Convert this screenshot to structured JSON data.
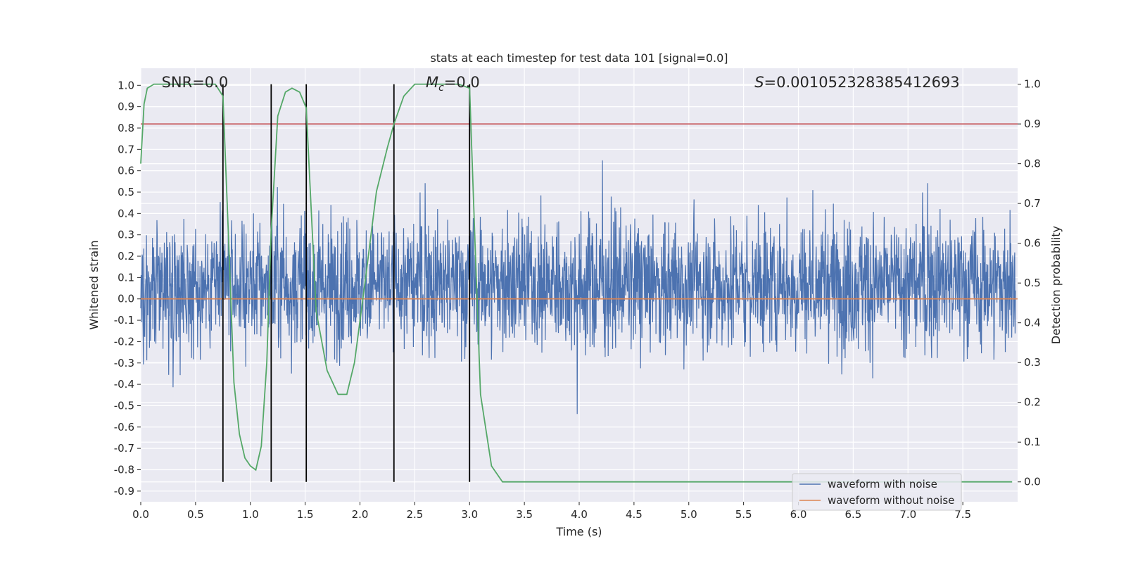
{
  "chart_data": {
    "type": "line",
    "title": "stats at each timestep for test data 101 [signal=0.0]",
    "xlabel": "Time (s)",
    "ylabel": "Whitened strain",
    "y2label": "Detection probability",
    "xlim": [
      0.0,
      8.0
    ],
    "ylim": [
      -0.95,
      1.08
    ],
    "y2lim": [
      -0.05,
      1.04
    ],
    "xticks": [
      "0.0",
      "0.5",
      "1.0",
      "1.5",
      "2.0",
      "2.5",
      "3.0",
      "3.5",
      "4.0",
      "4.5",
      "5.0",
      "5.5",
      "6.0",
      "6.5",
      "7.0",
      "7.5"
    ],
    "yticks": [
      "1.0",
      "0.9",
      "0.8",
      "0.7",
      "0.6",
      "0.5",
      "0.4",
      "0.3",
      "0.2",
      "0.1",
      "0.0",
      "-0.1",
      "-0.2",
      "-0.3",
      "-0.4",
      "-0.5",
      "-0.6",
      "-0.7",
      "-0.8",
      "-0.9"
    ],
    "y2ticks": [
      "1.0",
      "0.9",
      "0.8",
      "0.7",
      "0.6",
      "0.5",
      "0.4",
      "0.3",
      "0.2",
      "0.1",
      "0.0"
    ],
    "annotations": {
      "snr": "SNR=0.0",
      "mc_symbol": "M",
      "mc_sub": "c",
      "mc_value": "=0.0",
      "s_symbol": "S",
      "s_value": "=0.001052328385412693"
    },
    "threshold": 0.9,
    "vlines": [
      0.75,
      1.19,
      1.51,
      2.31,
      3.0
    ],
    "series": [
      {
        "name": "waveform with noise",
        "color": "#4c72b0",
        "description": "noisy whitened strain, amplitude roughly within -0.85..1.0"
      },
      {
        "name": "waveform without noise",
        "color": "#dd8452",
        "value": 0.0
      },
      {
        "name": "detection probability",
        "color": "#55a868",
        "axis": "right",
        "x": [
          0.0,
          0.03,
          0.06,
          0.12,
          0.2,
          0.3,
          0.4,
          0.5,
          0.6,
          0.68,
          0.75,
          0.8,
          0.85,
          0.9,
          0.95,
          1.0,
          1.05,
          1.1,
          1.15,
          1.19,
          1.25,
          1.32,
          1.38,
          1.45,
          1.51,
          1.6,
          1.7,
          1.8,
          1.88,
          1.95,
          2.05,
          2.15,
          2.25,
          2.31,
          2.4,
          2.5,
          2.6,
          2.7,
          2.8,
          2.9,
          3.0,
          3.05,
          3.1,
          3.2,
          3.3,
          7.95
        ],
        "values": [
          0.8,
          0.95,
          0.99,
          1.0,
          1.0,
          1.0,
          1.0,
          1.0,
          1.0,
          1.0,
          0.97,
          0.62,
          0.25,
          0.12,
          0.06,
          0.04,
          0.03,
          0.09,
          0.3,
          0.63,
          0.92,
          0.98,
          0.99,
          0.98,
          0.94,
          0.43,
          0.28,
          0.22,
          0.22,
          0.3,
          0.51,
          0.73,
          0.84,
          0.9,
          0.97,
          1.0,
          1.0,
          1.0,
          1.0,
          1.0,
          0.99,
          0.6,
          0.22,
          0.04,
          0.0,
          0.0
        ]
      },
      {
        "name": "threshold",
        "color": "#c44e52",
        "axis": "right",
        "value": 0.9
      }
    ],
    "legend": {
      "placement": "lower-right",
      "entries": [
        {
          "label": "waveform with noise",
          "color": "#4c72b0"
        },
        {
          "label": "waveform without noise",
          "color": "#dd8452"
        }
      ]
    }
  }
}
